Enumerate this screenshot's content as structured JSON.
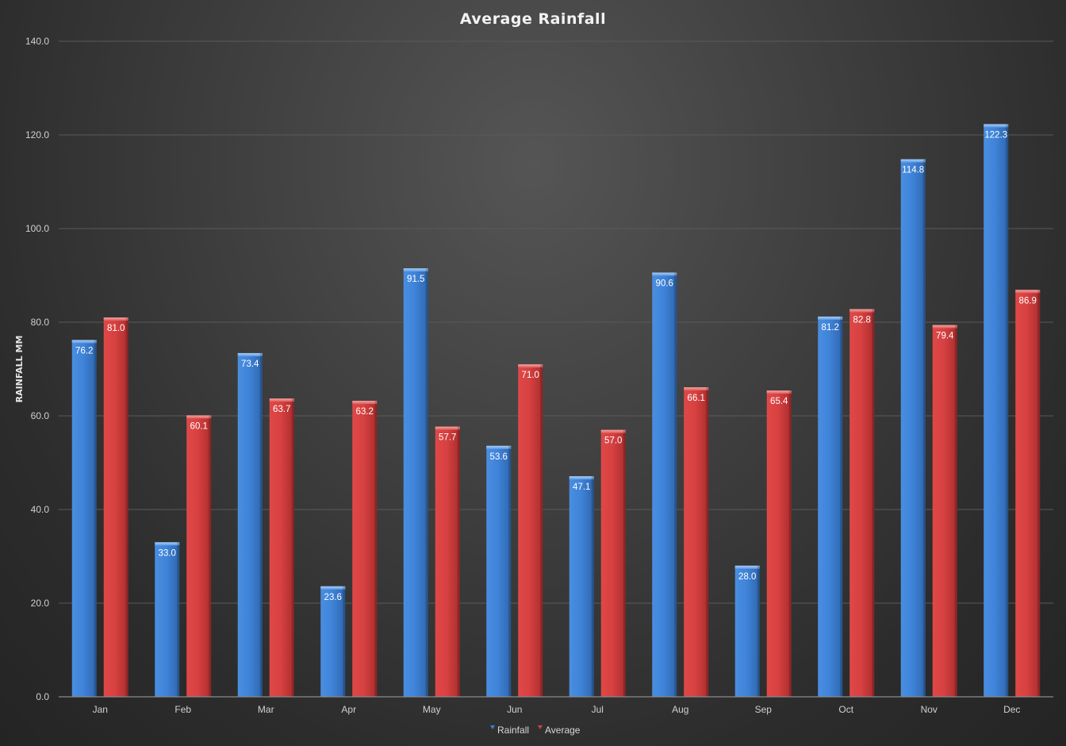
{
  "chart_data": {
    "type": "bar",
    "title": "Average Rainfall",
    "xlabel": "",
    "ylabel": "RAINFALL MM",
    "ylim": [
      0,
      140
    ],
    "yticks": [
      "0.0",
      "20.0",
      "40.0",
      "60.0",
      "80.0",
      "100.0",
      "120.0",
      "140.0"
    ],
    "categories": [
      "Jan",
      "Feb",
      "Mar",
      "Apr",
      "May",
      "Jun",
      "Jul",
      "Aug",
      "Sep",
      "Oct",
      "Nov",
      "Dec"
    ],
    "series": [
      {
        "name": "Rainfall",
        "color": "#3a7fd5",
        "values": [
          76.2,
          33.0,
          73.4,
          23.6,
          91.5,
          53.6,
          47.1,
          90.6,
          28.0,
          81.2,
          114.8,
          122.3
        ]
      },
      {
        "name": "Average",
        "color": "#d63d3d",
        "values": [
          81.0,
          60.1,
          63.7,
          63.2,
          57.7,
          71.0,
          57.0,
          66.1,
          65.4,
          82.8,
          79.4,
          86.9
        ]
      }
    ],
    "grid": true,
    "legend_position": "bottom",
    "data_labels": true
  }
}
